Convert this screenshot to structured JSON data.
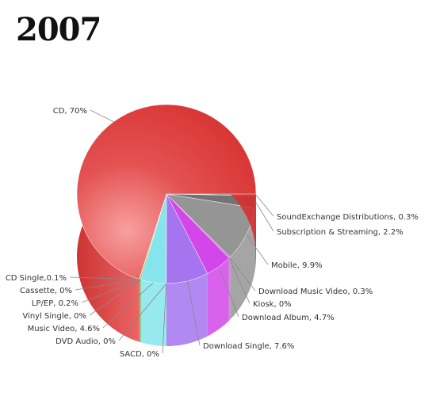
{
  "chart_data": {
    "type": "pie",
    "title": "2007",
    "slices": [
      {
        "label": "SoundExchange Distributions",
        "value": 0.3,
        "display": "SoundExchange Distributions, 0.3%",
        "color": "#6a6a6a"
      },
      {
        "label": "Subscription & Streaming",
        "value": 2.2,
        "display": "Subscription & Streaming, 2.2%",
        "color": "#737373"
      },
      {
        "label": "Mobile",
        "value": 9.9,
        "display": "Mobile, 9.9%",
        "color": "#959595"
      },
      {
        "label": "Download Music Video",
        "value": 0.3,
        "display": "Download Music Video, 0.3%",
        "color": "#c77ad1"
      },
      {
        "label": "Kiosk",
        "value": 0,
        "display": "Kiosk, 0%",
        "color": "#c04ad0"
      },
      {
        "label": "Download Album",
        "value": 4.7,
        "display": "Download Album, 4.7%",
        "color": "#d246ea"
      },
      {
        "label": "Download Single",
        "value": 7.6,
        "display": "Download Single, 7.6%",
        "color": "#a574ee"
      },
      {
        "label": "SACD",
        "value": 0,
        "display": "SACD, 0%",
        "color": "#8a8ae8"
      },
      {
        "label": "DVD Audio",
        "value": 0,
        "display": "DVD Audio, 0%",
        "color": "#7fd7e8"
      },
      {
        "label": "Music Video",
        "value": 4.6,
        "display": "Music Video, 4.6%",
        "color": "#86e4ec"
      },
      {
        "label": "Vinyl Single",
        "value": 0,
        "display": "Vinyl Single, 0%",
        "color": "#a4d47a"
      },
      {
        "label": "LP/EP",
        "value": 0.2,
        "display": "LP/EP, 0.2%",
        "color": "#58b23a"
      },
      {
        "label": "Cassette",
        "value": 0,
        "display": "Cassette, 0%",
        "color": "#d2a04a"
      },
      {
        "label": "CD Single",
        "value": 0.1,
        "display": "CD Single,0.1%",
        "color": "#e07a50"
      },
      {
        "label": "CD",
        "value": 70,
        "display": "CD, 70%",
        "color": "#e04040"
      }
    ]
  }
}
